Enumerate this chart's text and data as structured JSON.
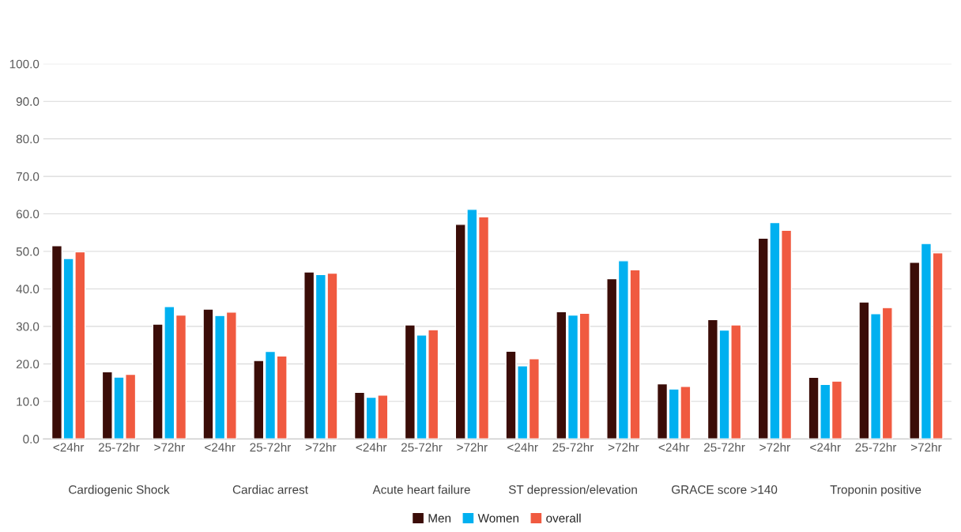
{
  "chart_data": {
    "type": "bar",
    "categories": [
      "<24hr",
      "25-72hr",
      ">72hr",
      "<24hr",
      "25-72hr",
      ">72hr",
      "<24hr",
      "25-72hr",
      ">72hr",
      "<24hr",
      "25-72hr",
      ">72hr",
      "<24hr",
      "25-72hr",
      ">72hr",
      "<24hr",
      "25-72hr",
      ">72hr"
    ],
    "annotations": [
      "Cardiogenic Shock",
      "Cardiac arrest",
      "Acute heart failure",
      "ST depression/elevation",
      "GRACE score >140",
      "Troponin positive"
    ],
    "series": [
      {
        "name": "Men",
        "color": "#3b0d08",
        "values": [
          51.5,
          17.9,
          30.6,
          34.6,
          20.9,
          44.5,
          12.4,
          30.4,
          57.2,
          23.4,
          33.9,
          42.7,
          14.7,
          31.8,
          53.5,
          16.4,
          36.5,
          47.1
        ]
      },
      {
        "name": "Women",
        "color": "#00b0f0",
        "values": [
          48.1,
          16.5,
          35.3,
          32.9,
          23.3,
          43.8,
          11.1,
          27.7,
          61.2,
          19.5,
          33.0,
          47.5,
          13.3,
          29.0,
          57.7,
          14.5,
          33.4,
          52.1
        ]
      },
      {
        "name": "overall",
        "color": "#f05a40",
        "values": [
          49.9,
          17.2,
          33.0,
          33.8,
          22.1,
          44.2,
          11.7,
          29.1,
          59.2,
          21.4,
          33.5,
          45.1,
          14.0,
          30.4,
          55.6,
          15.4,
          35.0,
          49.6
        ]
      }
    ],
    "ylim": [
      0,
      100
    ],
    "yticks": [
      {
        "value": 0,
        "label": "0.0"
      },
      {
        "value": 10,
        "label": "10.0"
      },
      {
        "value": 20,
        "label": "20.0"
      },
      {
        "value": 30,
        "label": "30.0"
      },
      {
        "value": 40,
        "label": "40.0"
      },
      {
        "value": 50,
        "label": "50.0"
      },
      {
        "value": 60,
        "label": "60.0"
      },
      {
        "value": 70,
        "label": "70.0"
      },
      {
        "value": 80,
        "label": "80.0"
      },
      {
        "value": 90,
        "label": "90.0"
      },
      {
        "value": 100,
        "label": "100.0"
      }
    ],
    "grid": "y",
    "legend": "bottom"
  }
}
